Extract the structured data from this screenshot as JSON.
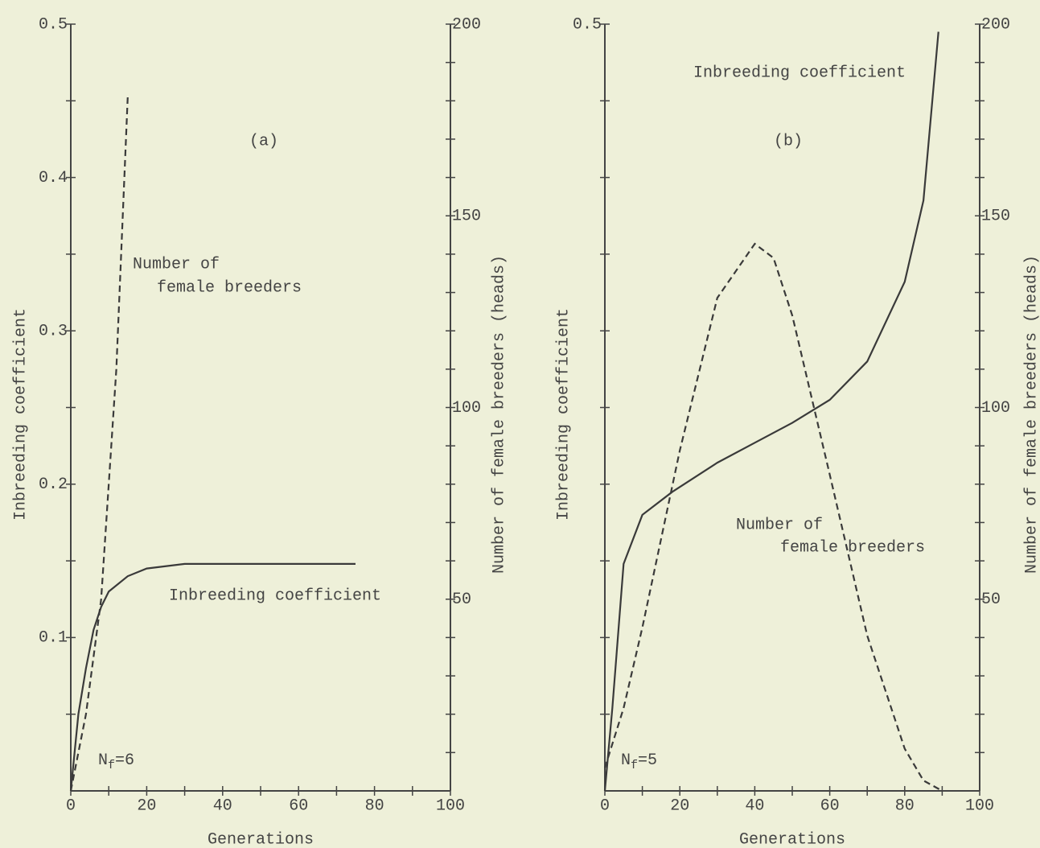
{
  "chart_data": [
    {
      "type": "line",
      "title": "(a)",
      "xlabel": "Generations",
      "ylabel": "Inbreeding coefficient",
      "y2label": "Number of female breeders (heads)",
      "xlim": [
        0,
        100
      ],
      "ylim": [
        0,
        0.5
      ],
      "y2lim": [
        0,
        200
      ],
      "xticks": [
        0,
        20,
        40,
        60,
        80,
        100
      ],
      "xminorticks": [
        10,
        30,
        50,
        70,
        90
      ],
      "yticks": [
        0.1,
        0.2,
        0.3,
        0.4,
        0.5
      ],
      "yminorticks": [
        0.05,
        0.15,
        0.25,
        0.35,
        0.45
      ],
      "y2ticks": [
        50,
        100,
        150,
        200
      ],
      "y2minorticks": [
        10,
        20,
        30,
        40,
        60,
        70,
        80,
        90,
        110,
        120,
        130,
        140,
        160,
        170,
        180,
        190
      ],
      "note": {
        "main": "N",
        "sub": "f",
        "tail": "=6"
      },
      "series": [
        {
          "name": [
            "Inbreeding coefficient"
          ],
          "color": "#3a3a3a",
          "dash": false,
          "x": [
            0,
            2,
            4,
            6,
            8,
            10,
            15,
            20,
            30,
            40,
            60,
            75
          ],
          "values": [
            0,
            0.05,
            0.08,
            0.105,
            0.12,
            0.13,
            0.14,
            0.145,
            0.148,
            0.148,
            0.148,
            0.148
          ]
        },
        {
          "name": [
            "Number of",
            "female breeders"
          ],
          "color": "#3a3a3a",
          "dash": true,
          "axis": "y2",
          "x": [
            0,
            4,
            8,
            12,
            15
          ],
          "values": [
            0,
            20,
            50,
            110,
            181
          ]
        }
      ]
    },
    {
      "type": "line",
      "title": "(b)",
      "xlabel": "Generations",
      "ylabel": "Inbreeding coefficient",
      "y2label": "Number of female breeders (heads)",
      "xlim": [
        0,
        100
      ],
      "ylim": [
        0,
        0.5
      ],
      "y2lim": [
        0,
        200
      ],
      "xticks": [
        0,
        20,
        40,
        60,
        80,
        100
      ],
      "xminorticks": [
        10,
        30,
        50,
        70,
        90
      ],
      "yticks": [
        {
          "value": 0.5,
          "label": "0.5"
        }
      ],
      "yminorticks": [
        0.05,
        0.1,
        0.15,
        0.2,
        0.25,
        0.3,
        0.35,
        0.4,
        0.45
      ],
      "y2ticks": [
        50,
        100,
        150,
        200
      ],
      "y2minorticks": [
        10,
        20,
        30,
        40,
        60,
        70,
        80,
        90,
        110,
        120,
        130,
        140,
        160,
        170,
        180,
        190
      ],
      "note": {
        "main": "N",
        "sub": "f",
        "tail": "=5"
      },
      "series": [
        {
          "name": [
            "Inbreeding coefficient"
          ],
          "color": "#3a3a3a",
          "dash": false,
          "x": [
            0,
            2,
            5,
            10,
            18,
            30,
            40,
            50,
            60,
            70,
            80,
            85,
            89
          ],
          "values": [
            0,
            0.054,
            0.148,
            0.18,
            0.195,
            0.214,
            0.227,
            0.24,
            0.255,
            0.28,
            0.332,
            0.385,
            0.495
          ]
        },
        {
          "name": [
            "Number of",
            "female breeders"
          ],
          "color": "#3a3a3a",
          "dash": true,
          "axis": "y2",
          "x": [
            0,
            5,
            10,
            20,
            30,
            40,
            45,
            50,
            60,
            70,
            80,
            85,
            90
          ],
          "values": [
            6,
            21.6,
            42.6,
            88.8,
            128.6,
            142.7,
            139,
            124,
            82.5,
            40.5,
            11,
            2.7,
            0
          ]
        }
      ]
    }
  ]
}
